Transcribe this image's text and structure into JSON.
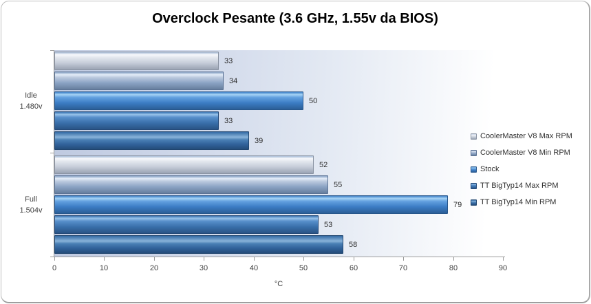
{
  "chart_data": {
    "type": "bar",
    "orientation": "horizontal",
    "title": "Overclock Pesante (3.6 GHz, 1.55v da BIOS)",
    "categories": [
      {
        "label": "Idle",
        "sublabel": "1.480v"
      },
      {
        "label": "Full",
        "sublabel": "1.504v"
      }
    ],
    "series": [
      {
        "name": "CoolerMaster V8 Max RPM",
        "values": [
          33,
          52
        ],
        "fill": "#c6cdd9"
      },
      {
        "name": "CoolerMaster V8 Min RPM",
        "values": [
          34,
          55
        ],
        "fill": "#8ba3c4"
      },
      {
        "name": "Stock",
        "values": [
          50,
          79
        ],
        "fill": "#3c7dc5"
      },
      {
        "name": "TT BigTyp14 Max RPM",
        "values": [
          33,
          53
        ],
        "fill": "#3a70ab"
      },
      {
        "name": "TT BigTyp14 Min RPM",
        "values": [
          39,
          58
        ],
        "fill": "#32639c"
      }
    ],
    "xlabel": "°C",
    "xlim": [
      0,
      90
    ],
    "xticks": [
      0,
      10,
      20,
      30,
      40,
      50,
      60,
      70,
      80,
      90
    ],
    "grid": false,
    "data_labels": true,
    "legend_position": "right",
    "title_color": "#000000",
    "axis_color": "#9b9b9b",
    "tick_label_color": "#3f3f3f"
  }
}
